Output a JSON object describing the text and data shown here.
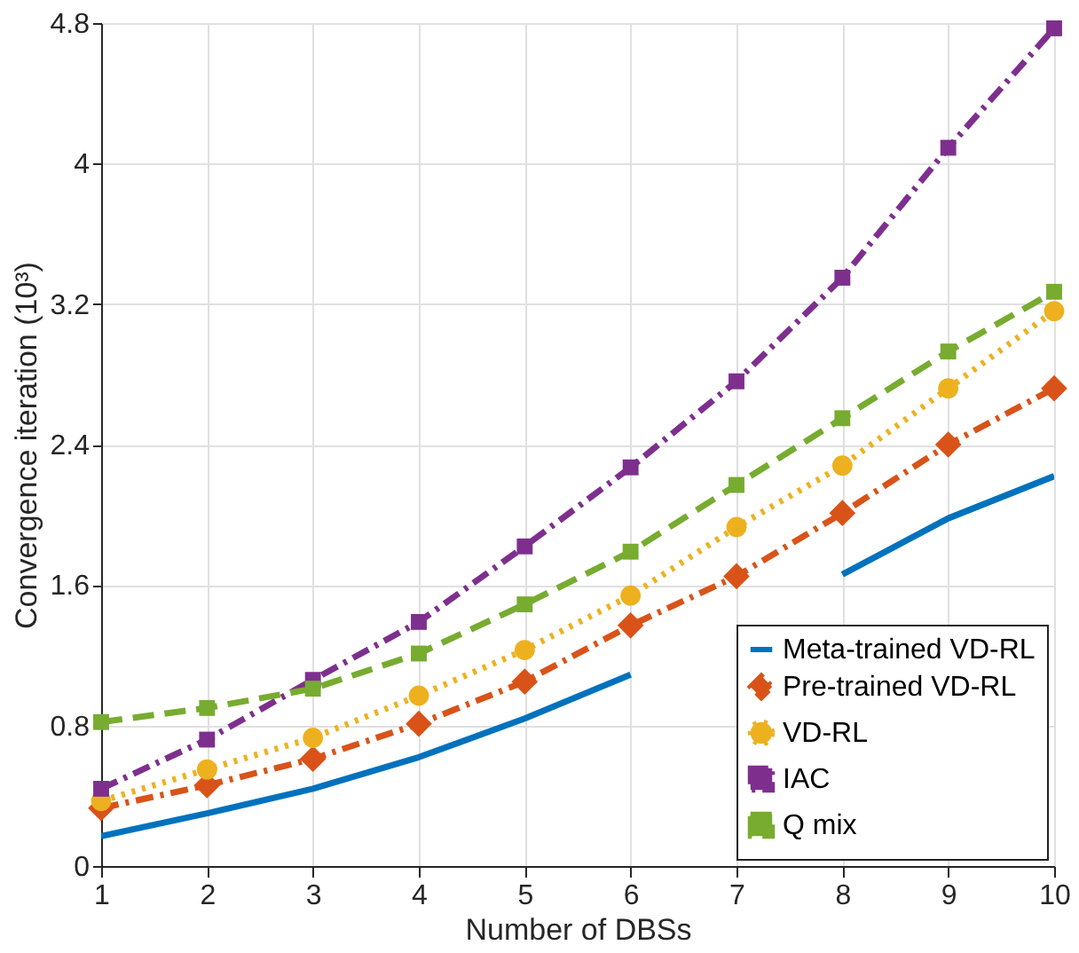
{
  "chart_data": {
    "type": "line",
    "xlabel": "Number of DBSs",
    "ylabel": "Convergence iteration (10³)",
    "x": [
      1,
      2,
      3,
      4,
      5,
      6,
      7,
      8,
      9,
      10
    ],
    "xlim": [
      1,
      10
    ],
    "xticks": [
      1,
      2,
      3,
      4,
      5,
      6,
      7,
      8,
      9,
      10
    ],
    "ylim": [
      0,
      4.8
    ],
    "yticks": [
      0,
      0.8,
      1.6,
      2.4,
      3.2,
      4,
      4.8
    ],
    "grid": true,
    "legend": "bottom right",
    "series": [
      {
        "name": "Meta-trained VD-RL",
        "color": "#0072bd",
        "marker": "none",
        "line_style": "solid",
        "values": [
          0.17,
          0.3,
          0.44,
          0.62,
          0.84,
          1.09,
          null,
          1.66,
          1.98,
          2.22
        ]
      },
      {
        "name": "Pre-trained VD-RL",
        "color": "#d95319",
        "marker": "diamond",
        "line_style": "dashdot",
        "values": [
          0.33,
          0.46,
          0.61,
          0.81,
          1.05,
          1.37,
          1.65,
          2.01,
          2.4,
          2.72
        ]
      },
      {
        "name": "VD-RL",
        "color": "#edb120",
        "marker": "circle",
        "line_style": "dotted",
        "values": [
          0.37,
          0.55,
          0.73,
          0.97,
          1.23,
          1.54,
          1.93,
          2.28,
          2.72,
          3.16
        ]
      },
      {
        "name": "IAC",
        "color": "#7e2f8e",
        "marker": "square",
        "line_style": "dashdot",
        "values": [
          0.44,
          0.72,
          1.06,
          1.39,
          1.82,
          2.27,
          2.76,
          3.35,
          4.09,
          4.77
        ]
      },
      {
        "name": "Q mix",
        "color": "#77ac30",
        "marker": "square",
        "line_style": "dashed",
        "values": [
          0.82,
          0.9,
          1.01,
          1.21,
          1.49,
          1.79,
          2.17,
          2.55,
          2.93,
          3.27
        ]
      }
    ]
  }
}
